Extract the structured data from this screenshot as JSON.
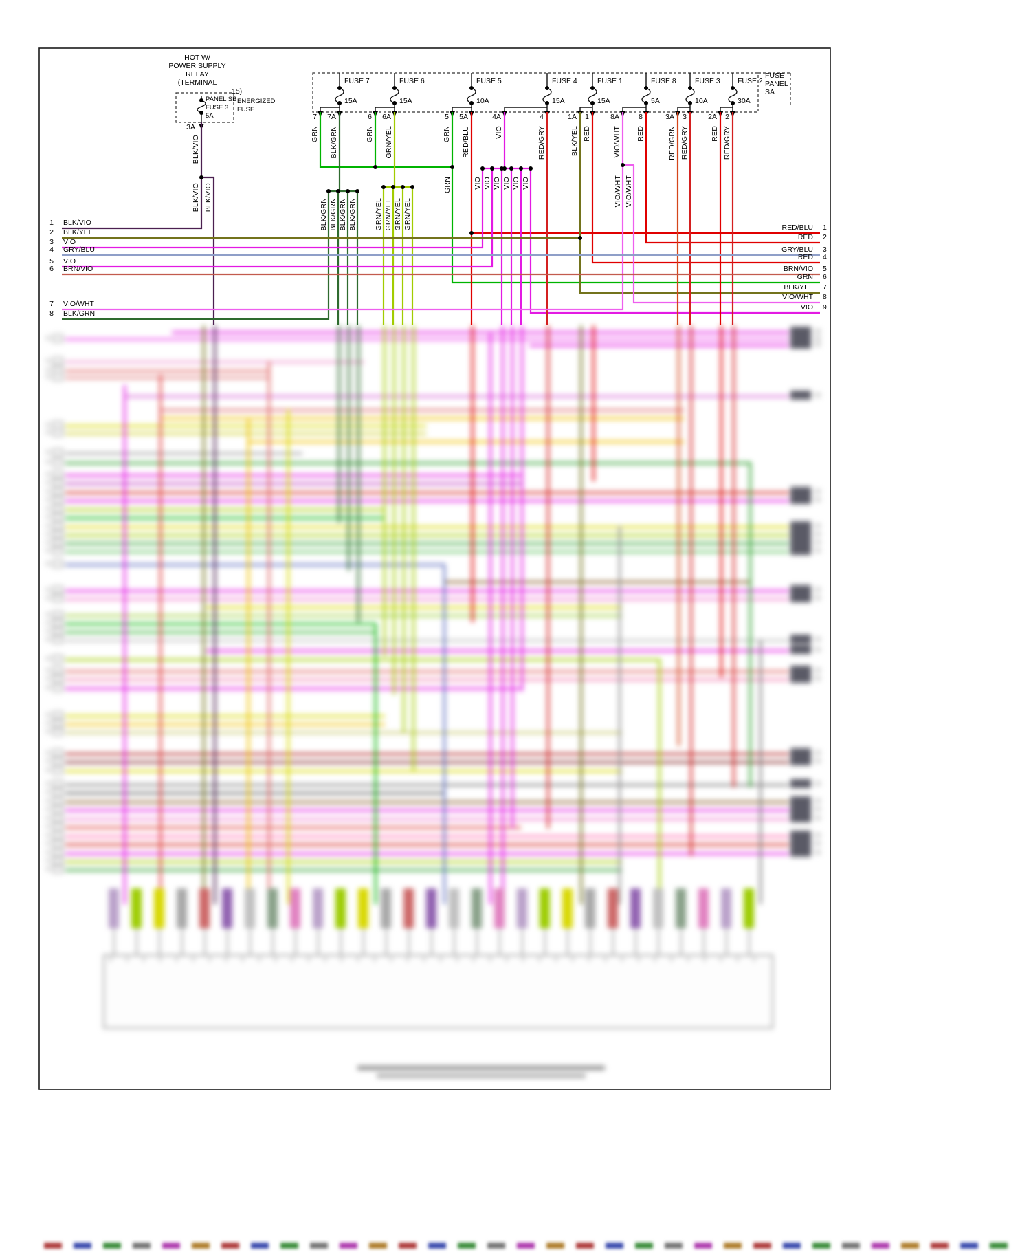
{
  "sheet": {
    "background": "#ffffff",
    "border_color": "#1a1a1a"
  },
  "wire_colors": {
    "GRN": "#00b400",
    "BLK/GRN": "#2f6b2f",
    "GRN/YEL": "#a2cc00",
    "RED/BLU": "#e00000",
    "VIO": "#e31ae3",
    "RED/GRY": "#d42020",
    "BLK/YEL": "#73731c",
    "RED": "#e00000",
    "VIO/WHT": "#ee5fee",
    "RED/GRN": "#d4461a",
    "BLK/VIO": "#4b2050",
    "GRY/BLU": "#8f9fc8",
    "BRN/VIO": "#c25b4e"
  },
  "relay": {
    "title_lines": [
      "HOT W/",
      "POWER SUPPLY",
      "RELAY",
      "(TERMINAL",
      "15)"
    ],
    "box_lines": [
      "PANEL SB",
      "FUSE 3",
      "5A"
    ],
    "side_label_lines": [
      "ENERGIZED",
      "FUSE"
    ],
    "below_rating": "3A",
    "wire": "BLK/VIO",
    "branch_wires": [
      "BLK/VIO",
      "BLK/VIO"
    ]
  },
  "fuse_panel": {
    "label_lines": [
      "FUSE",
      "PANEL",
      "SA"
    ],
    "fuses": [
      {
        "name": "FUSE 7",
        "rating": "15A",
        "taps": [
          {
            "pin": "7",
            "wire": "GRN"
          },
          {
            "pin": "7A",
            "wire": "BLK/GRN"
          }
        ]
      },
      {
        "name": "FUSE 6",
        "rating": "15A",
        "taps": [
          {
            "pin": "6",
            "wire": "GRN"
          },
          {
            "pin": "6A",
            "wire": "GRN/YEL"
          }
        ]
      },
      {
        "name": "FUSE 5",
        "rating": "10A",
        "taps": [
          {
            "pin": "5",
            "wire": "GRN"
          },
          {
            "pin": "5A",
            "wire": "RED/BLU"
          }
        ]
      },
      {
        "name": "FUSE 4",
        "rating": "15A",
        "taps": [
          {
            "pin": "4A",
            "wire": "VIO"
          },
          {
            "pin": "4",
            "wire": "RED/GRY"
          }
        ]
      },
      {
        "name": "FUSE 1",
        "rating": "15A",
        "taps": [
          {
            "pin": "1A",
            "wire": "BLK/YEL"
          },
          {
            "pin": "1",
            "wire": "RED"
          }
        ]
      },
      {
        "name": "FUSE 8",
        "rating": "5A",
        "taps": [
          {
            "pin": "8A",
            "wire": "VIO/WHT"
          },
          {
            "pin": "8",
            "wire": "RED"
          }
        ]
      },
      {
        "name": "FUSE 3",
        "rating": "10A",
        "taps": [
          {
            "pin": "3A",
            "wire": "RED/GRN"
          },
          {
            "pin": "3",
            "wire": "RED/GRY"
          }
        ]
      },
      {
        "name": "FUSE 2",
        "rating": "30A",
        "taps": [
          {
            "pin": "2A",
            "wire": "RED"
          },
          {
            "pin": "2",
            "wire": "RED/GRY"
          }
        ]
      }
    ]
  },
  "branch_labels": {
    "blk_grn": [
      "BLK/GRN",
      "BLK/GRN",
      "BLK/GRN",
      "BLK/GRN"
    ],
    "grn_yel": [
      "GRN/YEL",
      "GRN/YEL",
      "GRN/YEL",
      "GRN/YEL"
    ],
    "vio": [
      "VIO",
      "VIO",
      "VIO",
      "VIO",
      "VIO",
      "VIO"
    ],
    "vio_wht": [
      "VIO/WHT",
      "VIO/WHT"
    ],
    "grn": [
      "GRN"
    ]
  },
  "left_pins": [
    {
      "n": "1",
      "label": "BLK/VIO"
    },
    {
      "n": "2",
      "label": "BLK/YEL"
    },
    {
      "n": "3",
      "label": "VIO"
    },
    {
      "n": "4",
      "label": "GRY/BLU"
    },
    {
      "n": "5",
      "label": "VIO"
    },
    {
      "n": "6",
      "label": "BRN/VIO"
    },
    {
      "n": "7",
      "label": "VIO/WHT"
    },
    {
      "n": "8",
      "label": "BLK/GRN"
    }
  ],
  "right_pins": [
    {
      "n": "1",
      "label": "RED/BLU"
    },
    {
      "n": "2",
      "label": "RED"
    },
    {
      "n": "3",
      "label": "GRY/BLU"
    },
    {
      "n": "4",
      "label": "RED"
    },
    {
      "n": "5",
      "label": "BRN/VIO"
    },
    {
      "n": "6",
      "label": "GRN"
    },
    {
      "n": "7",
      "label": "BLK/YEL"
    },
    {
      "n": "8",
      "label": "VIO/WHT"
    },
    {
      "n": "9",
      "label": "VIO"
    }
  ]
}
